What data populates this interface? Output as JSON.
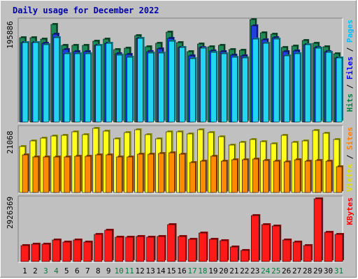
{
  "chart_data": {
    "type": "bar",
    "title": "Daily usage for December 2022",
    "categories": [
      "1",
      "2",
      "3",
      "4",
      "5",
      "6",
      "7",
      "8",
      "9",
      "10",
      "11",
      "12",
      "13",
      "14",
      "15",
      "16",
      "17",
      "18",
      "19",
      "20",
      "21",
      "22",
      "23",
      "24",
      "25",
      "26",
      "27",
      "28",
      "29",
      "30",
      "31"
    ],
    "weekend_days": [
      "3",
      "4",
      "10",
      "11",
      "17",
      "18",
      "24",
      "25",
      "31"
    ],
    "panels": [
      {
        "name": "hits-files-pages",
        "max_label": "195886",
        "max": 195886,
        "legend": [
          {
            "text": "Hits",
            "color": "#008040"
          },
          {
            "text": " / ",
            "color": "#000000"
          },
          {
            "text": "Files",
            "color": "#0000ff"
          },
          {
            "text": " / ",
            "color": "#000000"
          },
          {
            "text": "Pages",
            "color": "#00c0ff"
          }
        ],
        "series": [
          {
            "name": "Hits",
            "color": "#1e8a55",
            "values": [
              164000,
              164000,
              161000,
              189000,
              149000,
              149000,
              149000,
              157000,
              161000,
              141000,
              143000,
              168000,
              146000,
              153000,
              174000,
              154000,
              137000,
              151000,
              146000,
              148000,
              140000,
              139000,
              199000,
              173000,
              170000,
              145000,
              147000,
              158000,
              153000,
              146000,
              132000
            ]
          },
          {
            "name": "Files",
            "color": "#1f3fe0",
            "values": [
              154000,
              154000,
              152000,
              170000,
              140000,
              136000,
              137000,
              148000,
              152000,
              132000,
              131000,
              162000,
              136000,
              142000,
              162000,
              145000,
              128000,
              144000,
              138000,
              136000,
              130000,
              128000,
              187000,
              160000,
              164000,
              136000,
              138000,
              150000,
              144000,
              137000,
              124000
            ]
          },
          {
            "name": "Pages",
            "color": "#22d6f2",
            "values": [
              154000,
              154000,
              150000,
              164000,
              132000,
              132000,
              133000,
              148000,
              152000,
              130000,
              126000,
              162000,
              134000,
              134000,
              157000,
              145000,
              123000,
              143000,
              135000,
              132000,
              126000,
              124000,
              161000,
              152000,
              161000,
              129000,
              132000,
              150000,
              143000,
              135000,
              124000
            ]
          }
        ]
      },
      {
        "name": "visits-sites",
        "max_label": "21068",
        "max": 21068,
        "legend": [
          {
            "text": "Visits",
            "color": "#e0e000"
          },
          {
            "text": " / ",
            "color": "#000000"
          },
          {
            "text": "Sites",
            "color": "#ff8000"
          }
        ],
        "series": [
          {
            "name": "Visits",
            "color": "#ffff1a",
            "values": [
              15200,
              17000,
              17800,
              18600,
              18800,
              19900,
              18900,
              21000,
              20100,
              17600,
              19600,
              20500,
              18900,
              17700,
              20000,
              19900,
              19300,
              20600,
              19600,
              18300,
              15600,
              16500,
              17300,
              16700,
              16100,
              18700,
              16500,
              17000,
              20300,
              19400,
              17400
            ]
          },
          {
            "name": "Sites",
            "color": "#ff8c00",
            "values": [
              12300,
              11700,
              11700,
              11700,
              11700,
              11800,
              11800,
              12400,
              12300,
              11700,
              11700,
              12600,
              12600,
              12900,
              13100,
              12500,
              9900,
              10200,
              11800,
              10200,
              10800,
              10800,
              10900,
              10600,
              10200,
              10100,
              10800,
              10400,
              10500,
              10200,
              8500
            ]
          }
        ]
      },
      {
        "name": "kbytes",
        "max_label": "2926369",
        "max": 2926369,
        "legend": [
          {
            "text": "KBytes",
            "color": "#ff0000"
          }
        ],
        "series": [
          {
            "name": "KBytes",
            "color": "#ff1a1a",
            "values": [
              740000,
              800000,
              800000,
              1000000,
              920000,
              1020000,
              900000,
              1260000,
              1460000,
              1130000,
              1130000,
              1170000,
              1130000,
              1160000,
              1720000,
              1180000,
              1030000,
              1340000,
              1030000,
              960000,
              680000,
              530000,
              2160000,
              1720000,
              1660000,
              1000000,
              920000,
              760000,
              2926369,
              1380000,
              1280000
            ]
          }
        ]
      }
    ]
  },
  "colors": {
    "background": "#c0c0c0",
    "panel_fill": "#c0c0c0",
    "weekday_label": "#000000",
    "weekend_label": "#008040"
  }
}
